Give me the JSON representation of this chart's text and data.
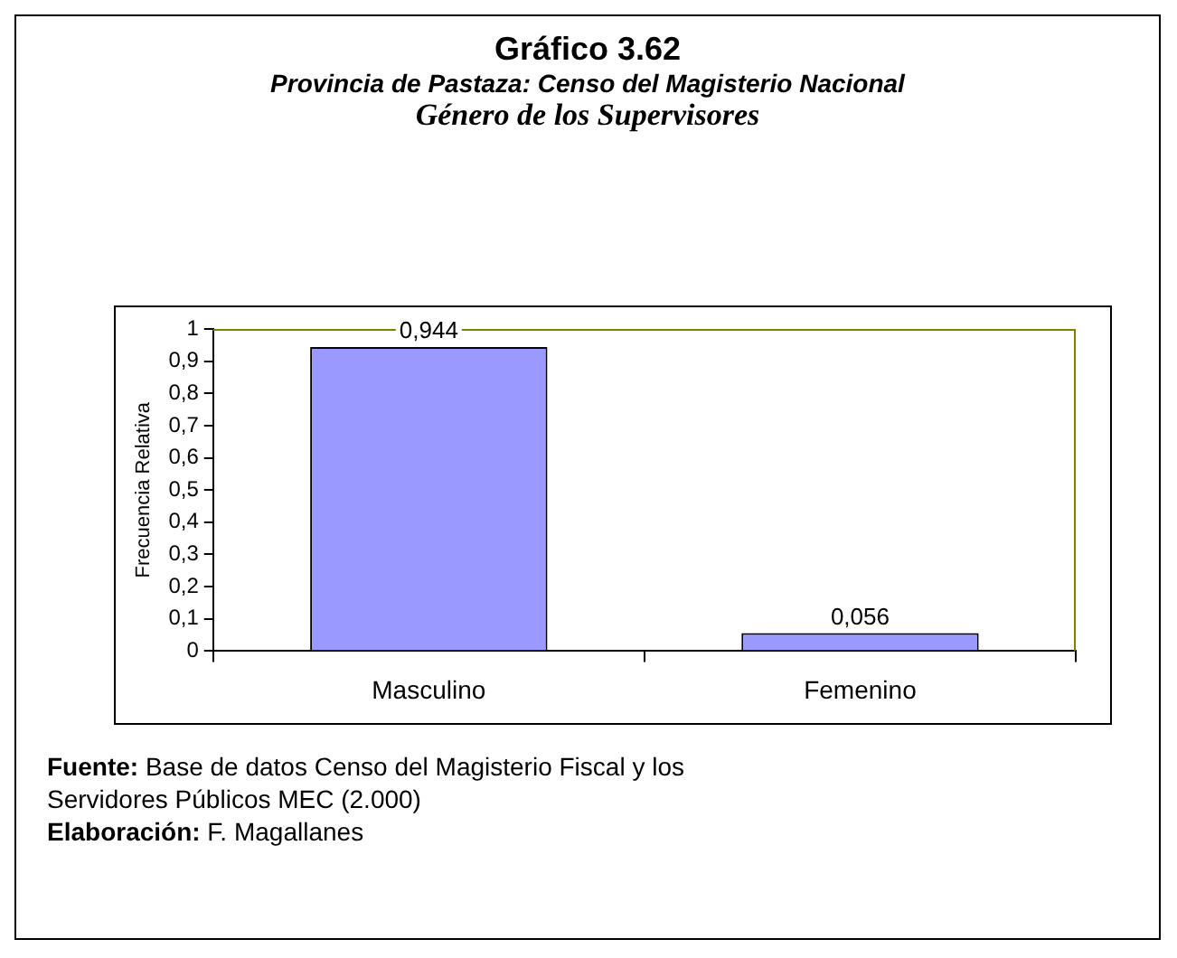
{
  "chart_data": {
    "type": "bar",
    "title": "Gráfico 3.62",
    "subtitle": "Provincia de Pastaza: Censo del Magisterio Nacional\nGénero de los Supervisores",
    "ylabel": "Frecuencia Relativa",
    "categories": [
      "Masculino",
      "Femenino"
    ],
    "values": [
      0.944,
      0.056
    ],
    "color": "#9999ff",
    "value_labels": [
      "0,944",
      "0,056"
    ],
    "ylim": [
      0,
      1
    ],
    "yticks": [
      0,
      {
        "value": 0.1,
        "label": "0,1"
      },
      {
        "value": 0.2,
        "label": "0,2"
      },
      {
        "value": 0.3,
        "label": "0,3"
      },
      {
        "value": 0.4,
        "label": "0,4"
      },
      {
        "value": 0.5,
        "label": "0,5"
      },
      {
        "value": 0.6,
        "label": "0,6"
      },
      {
        "value": 0.7,
        "label": "0,7"
      },
      {
        "value": 0.8,
        "label": "0,8"
      },
      {
        "value": 0.9,
        "label": "0,9"
      },
      1
    ],
    "grid": false,
    "legend": false,
    "annotations": [
      "Fuente: Base de datos Censo del Magisterio Fiscal y los Servidores Públicos MEC (2.000)",
      "Elaboración: F. Magallanes"
    ]
  }
}
